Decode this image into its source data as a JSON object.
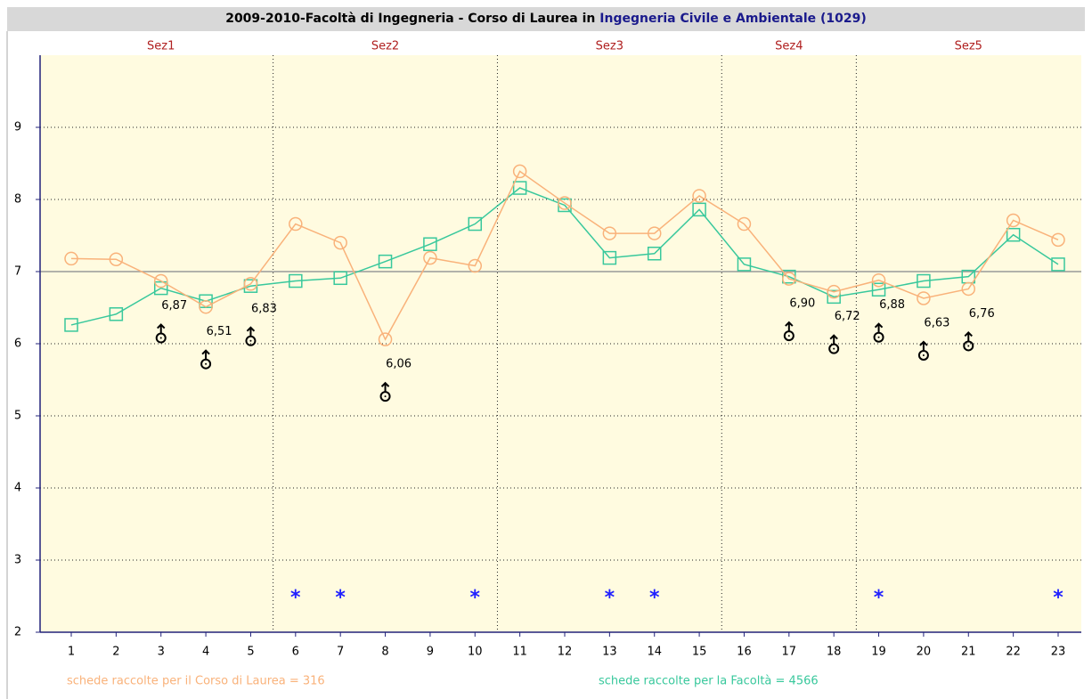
{
  "chart_data": {
    "type": "line",
    "title": "2009-2010-Facoltà di Ingegneria - Corso di Laurea in",
    "title_highlight": "Ingegneria Civile e Ambientale (1029)",
    "sections": [
      {
        "label": "Sez1",
        "first": 1,
        "last": 5
      },
      {
        "label": "Sez2",
        "first": 6,
        "last": 10
      },
      {
        "label": "Sez3",
        "first": 11,
        "last": 15
      },
      {
        "label": "Sez4",
        "first": 16,
        "last": 18
      },
      {
        "label": "Sez5",
        "first": 19,
        "last": 23
      }
    ],
    "categories": [
      "1",
      "2",
      "3",
      "4",
      "5",
      "6",
      "7",
      "8",
      "9",
      "10",
      "11",
      "12",
      "13",
      "14",
      "15",
      "16",
      "17",
      "18",
      "19",
      "20",
      "21",
      "22",
      "23"
    ],
    "series": [
      {
        "name": "schede raccolte per il Corso di Laurea = 316",
        "color": "#f9b27a",
        "marker": "circle",
        "values": [
          7.18,
          7.17,
          6.87,
          6.51,
          6.83,
          7.66,
          7.4,
          6.06,
          7.19,
          7.08,
          8.39,
          7.95,
          7.53,
          7.53,
          8.05,
          7.66,
          6.9,
          6.72,
          6.88,
          6.63,
          6.76,
          7.71,
          7.44
        ],
        "value_labels": [
          null,
          null,
          "6,87",
          "6,51",
          "6,83",
          null,
          null,
          "6,06",
          null,
          null,
          null,
          null,
          null,
          null,
          null,
          null,
          "6,90",
          "6,72",
          "6,88",
          "6,63",
          "6,76",
          null,
          null
        ]
      },
      {
        "name": "schede raccolte per la Facoltà = 4566",
        "color": "#38c89c",
        "marker": "square",
        "values": [
          6.26,
          6.41,
          6.77,
          6.59,
          6.8,
          6.87,
          6.91,
          7.14,
          7.38,
          7.66,
          8.16,
          7.92,
          7.19,
          7.25,
          7.86,
          7.1,
          6.93,
          6.65,
          6.75,
          6.87,
          6.93,
          7.51,
          7.1
        ]
      }
    ],
    "flagged": [
      false,
      false,
      false,
      false,
      false,
      true,
      true,
      false,
      false,
      true,
      false,
      false,
      true,
      true,
      false,
      false,
      false,
      false,
      true,
      false,
      false,
      false,
      true
    ],
    "ylim": [
      2,
      10
    ],
    "yticks": [
      2,
      3,
      4,
      5,
      6,
      7,
      8,
      9
    ],
    "reference_line": 7,
    "grid": true
  }
}
